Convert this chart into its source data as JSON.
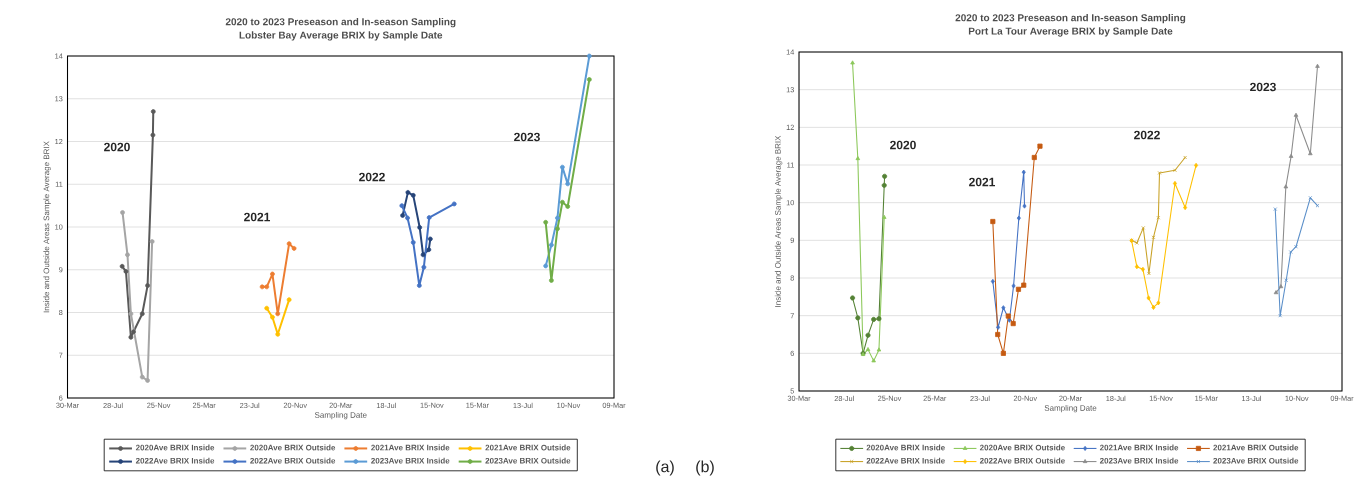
{
  "chart_data": [
    {
      "type": "line",
      "title": "2020 to 2023 Preseason and In-season Sampling",
      "subtitle": "Lobster Bay Average BRIX by Sample Date",
      "xlabel": "Sampling Date",
      "ylabel": "Inside and Outside Areas Sample Average BRIX",
      "xlim": [
        "2020-03-30",
        "2024-03-09"
      ],
      "xticks": [
        {
          "value": "2020-03-30",
          "label": "30-Mar"
        },
        {
          "value": "2020-07-28",
          "label": "28-Jul"
        },
        {
          "value": "2020-11-25",
          "label": "25-Nov"
        },
        {
          "value": "2021-03-25",
          "label": "25-Mar"
        },
        {
          "value": "2021-07-23",
          "label": "23-Jul"
        },
        {
          "value": "2021-11-20",
          "label": "20-Nov"
        },
        {
          "value": "2022-03-20",
          "label": "20-Mar"
        },
        {
          "value": "2022-07-18",
          "label": "18-Jul"
        },
        {
          "value": "2022-11-15",
          "label": "15-Nov"
        },
        {
          "value": "2023-03-15",
          "label": "15-Mar"
        },
        {
          "value": "2023-07-13",
          "label": "13-Jul"
        },
        {
          "value": "2023-11-10",
          "label": "10-Nov"
        },
        {
          "value": "2024-03-09",
          "label": "09-Mar"
        }
      ],
      "ylim": [
        6,
        14
      ],
      "yticks": [
        6,
        7,
        8,
        9,
        10,
        11,
        12,
        13,
        14
      ],
      "grid": "y",
      "legend": "bottom",
      "marker": "circle",
      "series": [
        {
          "name": "2020Ave BRIX Inside",
          "color": "#595959",
          "x": [
            "2020-08-21",
            "2020-08-31",
            "2020-09-13",
            "2020-09-20",
            "2020-10-13",
            "2020-10-27",
            "2020-11-10",
            "2020-11-11"
          ],
          "values": [
            9.08,
            8.96,
            7.42,
            7.55,
            7.97,
            8.63,
            12.15,
            12.7
          ]
        },
        {
          "name": "2020Ave BRIX Outside",
          "color": "#a5a5a5",
          "x": [
            "2020-08-22",
            "2020-09-04",
            "2020-09-13",
            "2020-10-13",
            "2020-10-27",
            "2020-11-08"
          ],
          "values": [
            10.34,
            9.35,
            7.97,
            6.49,
            6.41,
            9.66
          ]
        },
        {
          "name": "2021Ave BRIX Inside",
          "color": "#ed7d31",
          "x": [
            "2021-08-25",
            "2021-09-06",
            "2021-09-21",
            "2021-10-05",
            "2021-11-04",
            "2021-11-17"
          ],
          "values": [
            8.6,
            8.6,
            8.9,
            7.97,
            9.61,
            9.5
          ]
        },
        {
          "name": "2021Ave BRIX Outside",
          "color": "#ffc000",
          "x": [
            "2021-09-06",
            "2021-09-21",
            "2021-10-05",
            "2021-11-04"
          ],
          "values": [
            8.1,
            7.89,
            7.49,
            8.3
          ]
        },
        {
          "name": "2022Ave BRIX Inside",
          "color": "#264478",
          "x": [
            "2022-08-30",
            "2022-09-13",
            "2022-09-27",
            "2022-10-14",
            "2022-10-23",
            "2022-11-07",
            "2022-11-11"
          ],
          "values": [
            10.27,
            10.81,
            10.74,
            9.99,
            9.35,
            9.47,
            9.72
          ]
        },
        {
          "name": "2022Ave BRIX Outside",
          "color": "#4472c4",
          "x": [
            "2022-08-28",
            "2022-09-12",
            "2022-09-27",
            "2022-10-13",
            "2022-10-25",
            "2022-11-08",
            "2023-01-13"
          ],
          "values": [
            10.5,
            10.21,
            9.64,
            8.63,
            9.06,
            10.22,
            10.54
          ]
        },
        {
          "name": "2023Ave BRIX Inside",
          "color": "#5b9bd5",
          "x": [
            "2023-09-11",
            "2023-09-26",
            "2023-10-12",
            "2023-10-25",
            "2023-11-08",
            "2024-01-04"
          ],
          "values": [
            9.09,
            9.58,
            10.21,
            11.4,
            11.01,
            14.0
          ]
        },
        {
          "name": "2023Ave BRIX Outside",
          "color": "#70ad47",
          "x": [
            "2023-09-11",
            "2023-09-26",
            "2023-10-12",
            "2023-10-25",
            "2023-11-08",
            "2024-01-04"
          ],
          "values": [
            10.11,
            8.75,
            9.96,
            10.58,
            10.48,
            13.45
          ]
        }
      ],
      "annotations": [
        "2020",
        "2021",
        "2022",
        "2023",
        "(a)"
      ]
    },
    {
      "type": "line",
      "title": "2020 to 2023 Preseason and In-season Sampling",
      "subtitle": "Port La Tour Average BRIX by Sample Date",
      "xlabel": "Sampling Date",
      "ylabel": "Inside and Outside Areas Sample Average BRIX",
      "xlim": [
        "2020-03-30",
        "2024-03-09"
      ],
      "xticks": [
        {
          "value": "2020-03-30",
          "label": "30-Mar"
        },
        {
          "value": "2020-07-28",
          "label": "28-Jul"
        },
        {
          "value": "2020-11-25",
          "label": "25-Nov"
        },
        {
          "value": "2021-03-25",
          "label": "25-Mar"
        },
        {
          "value": "2021-07-23",
          "label": "23-Jul"
        },
        {
          "value": "2021-11-20",
          "label": "20-Nov"
        },
        {
          "value": "2022-03-20",
          "label": "20-Mar"
        },
        {
          "value": "2022-07-18",
          "label": "18-Jul"
        },
        {
          "value": "2022-11-15",
          "label": "15-Nov"
        },
        {
          "value": "2023-03-15",
          "label": "15-Mar"
        },
        {
          "value": "2023-07-13",
          "label": "13-Jul"
        },
        {
          "value": "2023-11-10",
          "label": "10-Nov"
        },
        {
          "value": "2024-03-09",
          "label": "09-Mar"
        }
      ],
      "ylim": [
        5,
        14
      ],
      "yticks": [
        5,
        6,
        7,
        8,
        9,
        10,
        11,
        12,
        13,
        14
      ],
      "grid": "y",
      "legend": "bottom",
      "series": [
        {
          "name": "2020Ave BRIX Inside",
          "color": "#548235",
          "marker": "circle",
          "x": [
            "2020-08-19",
            "2020-09-02",
            "2020-09-16",
            "2020-09-29",
            "2020-10-14",
            "2020-10-28",
            "2020-11-11",
            "2020-11-12"
          ],
          "values": [
            7.47,
            6.94,
            6.0,
            6.48,
            6.9,
            6.92,
            10.46,
            10.7
          ]
        },
        {
          "name": "2020Ave BRIX Outside",
          "color": "#8cc85a",
          "marker": "triangle",
          "x": [
            "2020-08-19",
            "2020-09-02",
            "2020-09-16",
            "2020-09-29",
            "2020-10-14",
            "2020-10-28",
            "2020-11-11"
          ],
          "values": [
            13.71,
            11.17,
            5.97,
            6.1,
            5.8,
            6.09,
            9.61
          ]
        },
        {
          "name": "2021Ave BRIX Inside",
          "color": "#4472c4",
          "marker": "diamond",
          "x": [
            "2021-08-26",
            "2021-09-09",
            "2021-09-23",
            "2021-10-09",
            "2021-10-20",
            "2021-11-03",
            "2021-11-16",
            "2021-11-18"
          ],
          "values": [
            7.91,
            6.69,
            7.21,
            6.88,
            7.79,
            9.59,
            10.81,
            9.91
          ]
        },
        {
          "name": "2021Ave BRIX Outside",
          "color": "#c55a11",
          "marker": "square",
          "x": [
            "2021-08-26",
            "2021-09-08",
            "2021-09-23",
            "2021-10-06",
            "2021-10-19",
            "2021-11-02",
            "2021-11-16",
            "2021-12-14",
            "2021-12-29"
          ],
          "values": [
            9.5,
            6.5,
            6.0,
            6.99,
            6.79,
            7.7,
            7.81,
            11.2,
            11.5
          ]
        },
        {
          "name": "2022Ave BRIX Inside",
          "color": "#c9a227",
          "marker": "cross",
          "x": [
            "2022-08-29",
            "2022-09-12",
            "2022-09-29",
            "2022-10-14",
            "2022-10-26",
            "2022-11-08",
            "2022-11-11",
            "2022-12-22",
            "2023-01-18"
          ],
          "values": [
            9.0,
            8.93,
            9.33,
            8.12,
            9.08,
            9.6,
            10.79,
            10.86,
            11.2
          ]
        },
        {
          "name": "2022Ave BRIX Outside",
          "color": "#ffc000",
          "marker": "diamond",
          "x": [
            "2022-08-29",
            "2022-09-12",
            "2022-09-28",
            "2022-10-13",
            "2022-10-26",
            "2022-11-08",
            "2022-12-22",
            "2023-01-18",
            "2023-02-16"
          ],
          "values": [
            8.99,
            8.3,
            8.23,
            7.47,
            7.22,
            7.34,
            10.51,
            9.87,
            10.99
          ]
        },
        {
          "name": "2023Ave BRIX Inside",
          "color": "#8c8c8c",
          "marker": "triangle",
          "x": [
            "2023-09-16",
            "2023-09-29",
            "2023-10-12",
            "2023-10-26",
            "2023-11-08",
            "2023-12-16",
            "2024-01-04"
          ],
          "values": [
            7.61,
            7.77,
            10.42,
            11.23,
            12.32,
            11.3,
            13.62
          ]
        },
        {
          "name": "2023Ave BRIX Outside",
          "color": "#5b8fc9",
          "marker": "cross",
          "x": [
            "2023-09-14",
            "2023-09-27",
            "2023-10-13",
            "2023-10-25",
            "2023-11-08",
            "2023-12-16",
            "2024-01-04"
          ],
          "values": [
            9.83,
            7.0,
            7.94,
            8.69,
            8.83,
            10.13,
            9.92
          ]
        }
      ],
      "annotations": [
        "2020",
        "2021",
        "2022",
        "2023",
        "(b)"
      ]
    }
  ]
}
